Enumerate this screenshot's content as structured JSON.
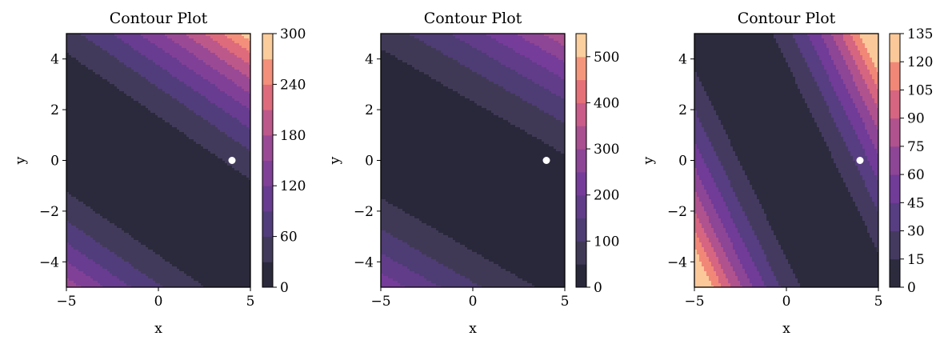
{
  "chart_data": [
    {
      "type": "contour",
      "title": "Contour Plot",
      "xlabel": "x",
      "ylabel": "y",
      "xlim": [
        -5,
        5
      ],
      "ylim": [
        -5,
        5
      ],
      "x_ticks": [
        "−5",
        "0",
        "5"
      ],
      "y_ticks": [
        "−4",
        "−2",
        "0",
        "2",
        "4"
      ],
      "colormap": "magma",
      "filled_levels": 10,
      "field": {
        "form": "(a*x + b*y + c)^2",
        "a": 1,
        "b": 2,
        "c": 2
      },
      "colorbar": {
        "min": 0,
        "max": 300,
        "ticks": [
          "0",
          "60",
          "120",
          "180",
          "240",
          "300"
        ]
      },
      "marker": {
        "x": 4,
        "y": 0,
        "color": "#ffffff"
      }
    },
    {
      "type": "contour",
      "title": "Contour Plot",
      "xlabel": "x",
      "ylabel": "y",
      "xlim": [
        -5,
        5
      ],
      "ylim": [
        -5,
        5
      ],
      "x_ticks": [
        "−5",
        "0",
        "5"
      ],
      "y_ticks": [
        "−4",
        "−2",
        "0",
        "2",
        "4"
      ],
      "colormap": "magma",
      "filled_levels": 11,
      "field": {
        "form": "(a*x + b*y + c)^2",
        "a": 1,
        "b": 2.4,
        "c": 1.5
      },
      "colorbar": {
        "min": 0,
        "max": 550,
        "ticks": [
          "0",
          "100",
          "200",
          "300",
          "400",
          "500"
        ]
      },
      "marker": {
        "x": 4,
        "y": 0,
        "color": "#ffffff"
      }
    },
    {
      "type": "contour",
      "title": "Contour Plot",
      "xlabel": "x",
      "ylabel": "y",
      "xlim": [
        -5,
        5
      ],
      "ylim": [
        -5,
        5
      ],
      "x_ticks": [
        "−5",
        "0",
        "5"
      ],
      "y_ticks": [
        "−4",
        "−2",
        "0",
        "2",
        "4"
      ],
      "colormap": "magma",
      "filled_levels": 9,
      "field": {
        "form": "(a*x + b*y + c)^2",
        "a": 1.5,
        "b": 1,
        "c": 0
      },
      "colorbar": {
        "min": 0,
        "max": 135,
        "ticks": [
          "0",
          "15",
          "30",
          "45",
          "60",
          "75",
          "90",
          "105",
          "120",
          "135"
        ]
      },
      "marker": {
        "x": 4,
        "y": 0,
        "color": "#ffffff"
      }
    }
  ]
}
